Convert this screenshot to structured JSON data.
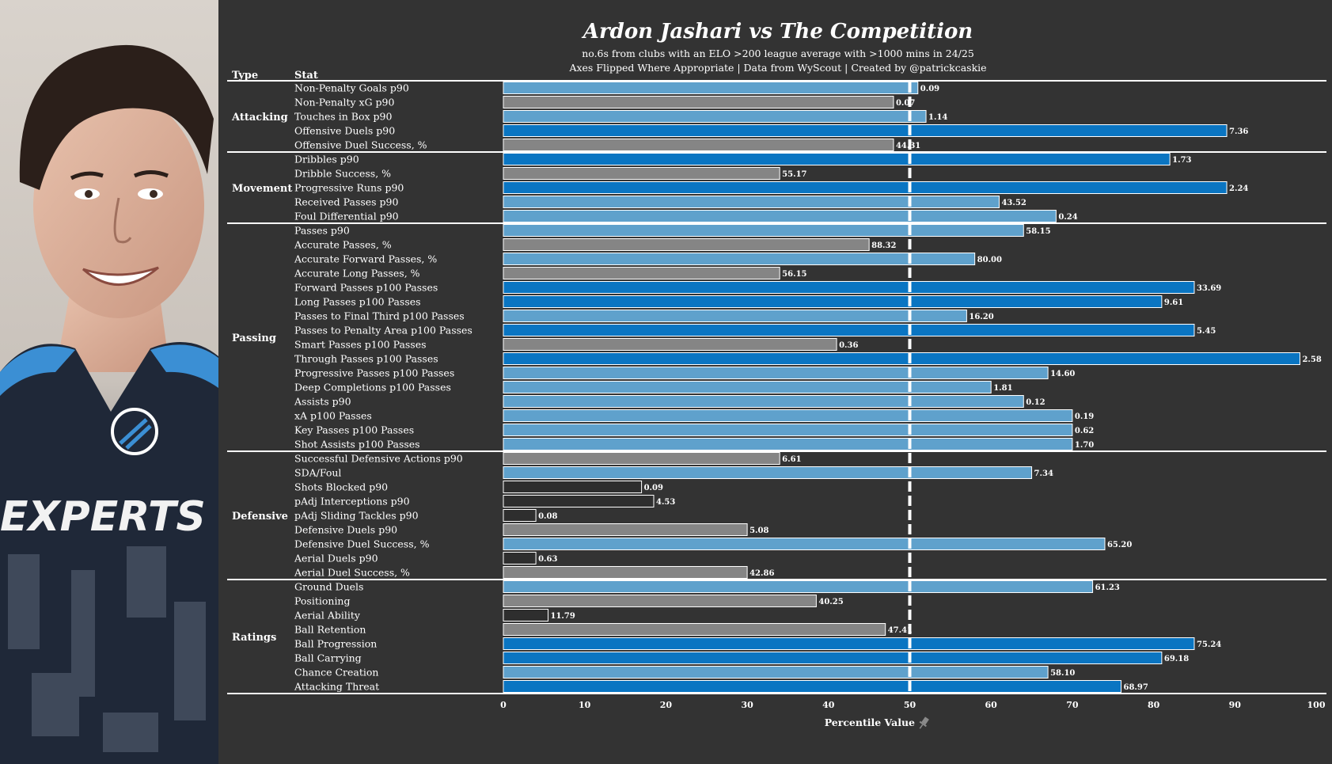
{
  "colors": {
    "background": "#333333",
    "above_strong": "#0a75c2",
    "above_mid": "#5fa1cc",
    "below_mid": "#858585",
    "below_strong": "#2e2e2e",
    "bar_edge": "#ffffff",
    "median_line": "#ffffff"
  },
  "photo": {
    "shirt_text": "EXPERTS"
  },
  "chart_data": {
    "type": "bar",
    "orientation": "horizontal",
    "title": "Ardon Jashari vs The Competition",
    "subtitle_lines": [
      "no.6s from clubs with an ELO >200 league average with >1000 mins in 24/25",
      "Axes Flipped Where Appropriate | Data from WyScout | Created by @patrickcaskie"
    ],
    "column_headers": {
      "type": "Type",
      "stat": "Stat"
    },
    "xlabel": "Percentile Value",
    "xlim": [
      0,
      100
    ],
    "xticks": [
      "0",
      "10",
      "20",
      "30",
      "40",
      "50",
      "60",
      "70",
      "80",
      "90",
      "100"
    ],
    "median_marker": 50,
    "groups": [
      {
        "name": "Attacking",
        "stats": [
          {
            "label": "Non-Penalty Goals p90",
            "percentile": 51,
            "value_label": "0.09"
          },
          {
            "label": "Non-Penalty xG p90",
            "percentile": 48,
            "value_label": "0.07"
          },
          {
            "label": "Touches in Box p90",
            "percentile": 52,
            "value_label": "1.14"
          },
          {
            "label": "Offensive Duels p90",
            "percentile": 89,
            "value_label": "7.36"
          },
          {
            "label": "Offensive Duel Success, %",
            "percentile": 48,
            "value_label": "44.31"
          }
        ]
      },
      {
        "name": "Movement",
        "stats": [
          {
            "label": "Dribbles p90",
            "percentile": 82,
            "value_label": "1.73"
          },
          {
            "label": "Dribble Success, %",
            "percentile": 34,
            "value_label": "55.17"
          },
          {
            "label": "Progressive Runs p90",
            "percentile": 89,
            "value_label": "2.24"
          },
          {
            "label": "Received Passes p90",
            "percentile": 61,
            "value_label": "43.52"
          },
          {
            "label": "Foul Differential p90",
            "percentile": 68,
            "value_label": "0.24"
          }
        ]
      },
      {
        "name": "Passing",
        "stats": [
          {
            "label": "Passes p90",
            "percentile": 64,
            "value_label": "58.15"
          },
          {
            "label": "Accurate Passes, %",
            "percentile": 45,
            "value_label": "88.32"
          },
          {
            "label": "Accurate Forward Passes, %",
            "percentile": 58,
            "value_label": "80.00"
          },
          {
            "label": "Accurate Long Passes, %",
            "percentile": 34,
            "value_label": "56.15"
          },
          {
            "label": "Forward Passes p100 Passes",
            "percentile": 85,
            "value_label": "33.69"
          },
          {
            "label": "Long Passes p100 Passes",
            "percentile": 81,
            "value_label": "9.61"
          },
          {
            "label": "Passes to Final Third p100 Passes",
            "percentile": 57,
            "value_label": "16.20"
          },
          {
            "label": "Passes to Penalty Area p100 Passes",
            "percentile": 85,
            "value_label": "5.45"
          },
          {
            "label": "Smart Passes p100 Passes",
            "percentile": 41,
            "value_label": "0.36"
          },
          {
            "label": "Through Passes p100 Passes",
            "percentile": 98,
            "value_label": "2.58"
          },
          {
            "label": "Progressive Passes p100 Passes",
            "percentile": 67,
            "value_label": "14.60"
          },
          {
            "label": "Deep Completions p100 Passes",
            "percentile": 60,
            "value_label": "1.81"
          },
          {
            "label": "Assists p90",
            "percentile": 64,
            "value_label": "0.12"
          },
          {
            "label": "xA p100 Passes",
            "percentile": 70,
            "value_label": "0.19"
          },
          {
            "label": "Key Passes p100 Passes",
            "percentile": 70,
            "value_label": "0.62"
          },
          {
            "label": "Shot Assists p100 Passes",
            "percentile": 70,
            "value_label": "1.70"
          }
        ]
      },
      {
        "name": "Defensive",
        "stats": [
          {
            "label": "Successful Defensive Actions p90",
            "percentile": 34,
            "value_label": "6.61"
          },
          {
            "label": "SDA/Foul",
            "percentile": 65,
            "value_label": "7.34"
          },
          {
            "label": "Shots Blocked p90",
            "percentile": 17,
            "value_label": "0.09"
          },
          {
            "label": "pAdj Interceptions p90",
            "percentile": 18.5,
            "value_label": "4.53"
          },
          {
            "label": "pAdj Sliding Tackles p90",
            "percentile": 4,
            "value_label": "0.08"
          },
          {
            "label": "Defensive Duels p90",
            "percentile": 30,
            "value_label": "5.08"
          },
          {
            "label": "Defensive Duel Success, %",
            "percentile": 74,
            "value_label": "65.20"
          },
          {
            "label": "Aerial Duels p90",
            "percentile": 4,
            "value_label": "0.63"
          },
          {
            "label": "Aerial Duel Success, %",
            "percentile": 30,
            "value_label": "42.86"
          }
        ]
      },
      {
        "name": "Ratings",
        "stats": [
          {
            "label": "Ground Duels",
            "percentile": 72.5,
            "value_label": "61.23"
          },
          {
            "label": "Positioning",
            "percentile": 38.5,
            "value_label": "40.25"
          },
          {
            "label": "Aerial Ability",
            "percentile": 5.5,
            "value_label": "11.79"
          },
          {
            "label": "Ball Retention",
            "percentile": 47,
            "value_label": "47.41"
          },
          {
            "label": "Ball Progression",
            "percentile": 85,
            "value_label": "75.24"
          },
          {
            "label": "Ball Carrying",
            "percentile": 81,
            "value_label": "69.18"
          },
          {
            "label": "Chance Creation",
            "percentile": 67,
            "value_label": "58.10"
          },
          {
            "label": "Attacking Threat",
            "percentile": 76,
            "value_label": "68.97"
          }
        ]
      }
    ]
  }
}
